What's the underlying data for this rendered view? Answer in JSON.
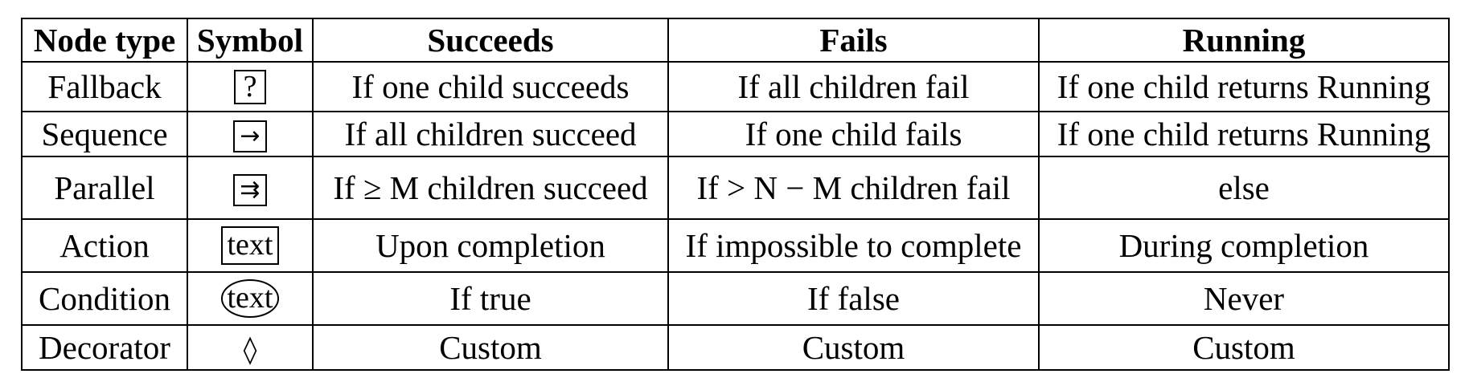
{
  "headers": {
    "node_type": "Node type",
    "symbol": "Symbol",
    "succeeds": "Succeeds",
    "fails": "Fails",
    "running": "Running"
  },
  "rows": [
    {
      "node_type": "Fallback",
      "symbol": "?",
      "succeeds": "If one child succeeds",
      "fails": "If all children fail",
      "running": "If one child returns Running"
    },
    {
      "node_type": "Sequence",
      "symbol": "→",
      "succeeds": "If all children succeed",
      "fails": "If one child fails",
      "running": "If one child returns Running"
    },
    {
      "node_type": "Parallel",
      "symbol": "⇉",
      "succeeds": "If ≥ M children succeed",
      "fails": "If > N − M children fail",
      "running": "else"
    },
    {
      "node_type": "Action",
      "symbol": "text",
      "succeeds": "Upon completion",
      "fails": "If impossible to complete",
      "running": "During completion"
    },
    {
      "node_type": "Condition",
      "symbol": "text",
      "succeeds": "If true",
      "fails": "If false",
      "running": "Never"
    },
    {
      "node_type": "Decorator",
      "symbol": "◊",
      "succeeds": "Custom",
      "fails": "Custom",
      "running": "Custom"
    }
  ]
}
